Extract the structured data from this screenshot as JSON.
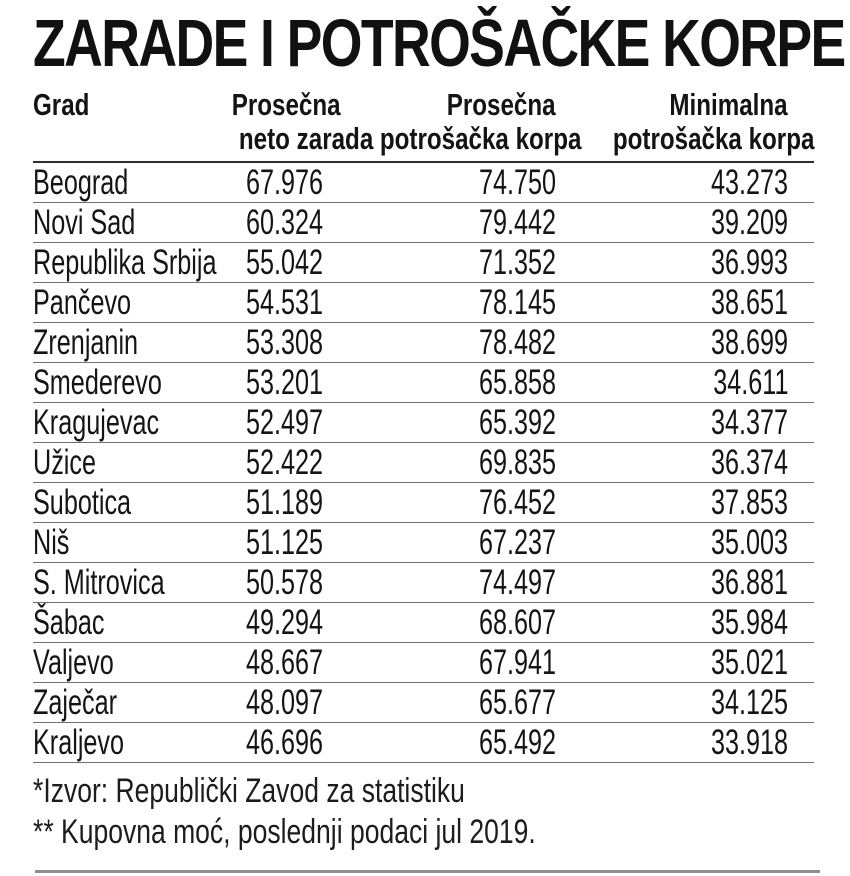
{
  "title": "ZARADE I POTROŠAČKE KORPE",
  "colors": {
    "background": "#ffffff",
    "text": "#141414",
    "header_rule": "#2e2e2e",
    "row_rule": "#6f6f6f",
    "bottom_rule": "#8d8d8d"
  },
  "table": {
    "header_lines": [
      {
        "l1": "Grad",
        "l2": ""
      },
      {
        "l1": "Prosečna",
        "l2": "neto zarada"
      },
      {
        "l1": "Prosečna",
        "l2": "potrošačka korpa"
      },
      {
        "l1": "Minimalna",
        "l2": "potrošačka korpa"
      }
    ]
  },
  "chart_data": {
    "type": "table",
    "title": "ZARADE I POTROŠAČKE KORPE",
    "columns": [
      "Grad",
      "Prosečna neto zarada",
      "Prosečna potrošačka korpa",
      "Minimalna potrošačka korpa"
    ],
    "rows": [
      [
        "Beograd",
        "67.976",
        "74.750",
        "43.273"
      ],
      [
        "Novi Sad",
        "60.324",
        "79.442",
        "39.209"
      ],
      [
        "Republika Srbija",
        "55.042",
        "71.352",
        "36.993"
      ],
      [
        "Pančevo",
        "54.531",
        "78.145",
        "38.651"
      ],
      [
        "Zrenjanin",
        "53.308",
        "78.482",
        "38.699"
      ],
      [
        "Smederevo",
        "53.201",
        "65.858",
        "34.611"
      ],
      [
        "Kragujevac",
        "52.497",
        "65.392",
        "34.377"
      ],
      [
        "Užice",
        "52.422",
        "69.835",
        "36.374"
      ],
      [
        "Subotica",
        "51.189",
        "76.452",
        "37.853"
      ],
      [
        "Niš",
        "51.125",
        "67.237",
        "35.003"
      ],
      [
        "S. Mitrovica",
        "50.578",
        "74.497",
        "36.881"
      ],
      [
        "Šabac",
        "49.294",
        "68.607",
        "35.984"
      ],
      [
        "Valjevo",
        "48.667",
        "67.941",
        "35.021"
      ],
      [
        "Zaječar",
        "48.097",
        "65.677",
        "34.125"
      ],
      [
        "Kraljevo",
        "46.696",
        "65.492",
        "33.918"
      ]
    ]
  },
  "footnotes": {
    "line1": "*Izvor: Republički Zavod za statistiku",
    "line2": "** Kupovna moć, poslednji podaci jul 2019."
  }
}
